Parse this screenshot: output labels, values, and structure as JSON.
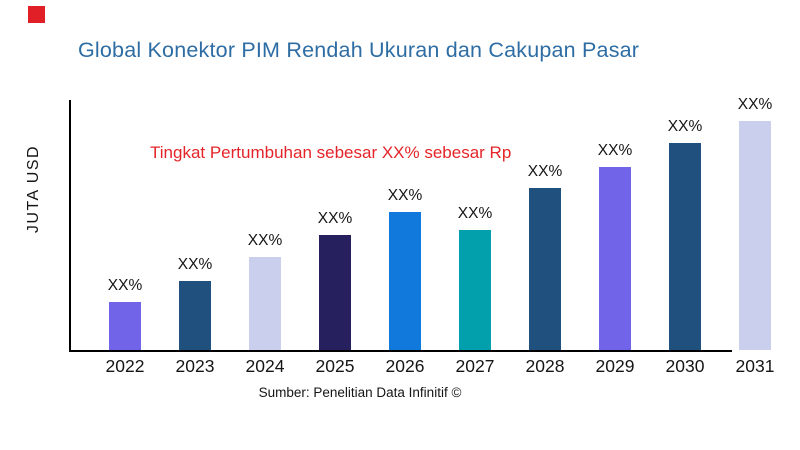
{
  "page": {
    "title": "Global Konektor PIM Rendah Ukuran dan Cakupan Pasar",
    "ylabel": "JUTA USD",
    "annotation": "Tingkat Pertumbuhan sebesar XX% sebesar Rp",
    "source": "Sumber: Penelitian Data Infinitif ©"
  },
  "colors": {
    "title": "#2E6DA4",
    "annotation": "#E42428",
    "axis": "#000000",
    "text": "#151515",
    "logo_square": "#E01F26"
  },
  "chart_data": {
    "type": "bar",
    "title": "Global Konektor PIM Rendah Ukuran dan Cakupan Pasar",
    "xlabel": "",
    "ylabel": "JUTA USD",
    "categories": [
      "2022",
      "2023",
      "2024",
      "2025",
      "2026",
      "2027",
      "2028",
      "2029",
      "2030",
      "2031"
    ],
    "values": [
      48,
      69,
      93,
      115,
      138,
      120,
      162,
      183,
      207,
      229
    ],
    "value_note": "y-axis has no numeric ticks; values are relative heights estimated from pixels (plot height = 252)",
    "ylim": [
      0,
      252
    ],
    "bar_labels": [
      "XX%",
      "XX%",
      "XX%",
      "XX%",
      "XX%",
      "XX%",
      "XX%",
      "XX%",
      "XX%",
      "XX%"
    ],
    "bar_colors": [
      "#7264E9",
      "#20507E",
      "#CACFEE",
      "#26205F",
      "#1179DC",
      "#02A0AC",
      "#20507E",
      "#7264E9",
      "#20507E",
      "#CACFEE"
    ],
    "annotation": "Tingkat Pertumbuhan sebesar XX% sebesar Rp",
    "source": "Sumber: Penelitian Data Infinitif ©",
    "grid": false,
    "legend": false
  }
}
